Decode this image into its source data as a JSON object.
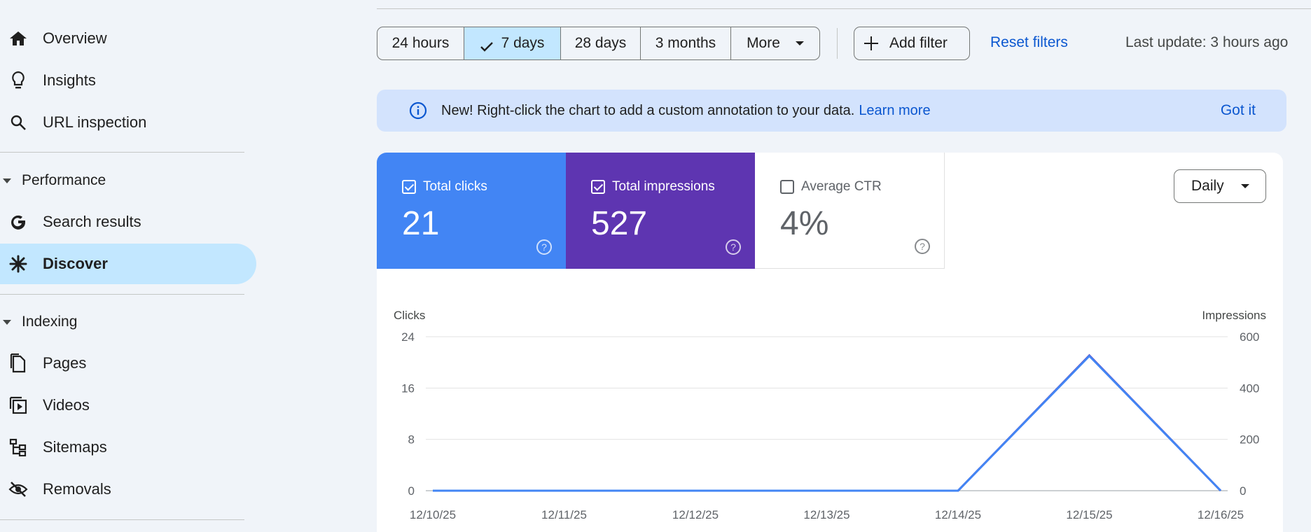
{
  "sidebar": {
    "items": [
      {
        "label": "Overview",
        "icon": "home-icon"
      },
      {
        "label": "Insights",
        "icon": "lightbulb-icon"
      },
      {
        "label": "URL inspection",
        "icon": "search-icon"
      }
    ],
    "performance": {
      "label": "Performance",
      "items": [
        {
          "label": "Search results",
          "icon": "google-g-icon"
        },
        {
          "label": "Discover",
          "icon": "asterisk-icon",
          "active": true
        }
      ]
    },
    "indexing": {
      "label": "Indexing",
      "items": [
        {
          "label": "Pages",
          "icon": "pages-icon"
        },
        {
          "label": "Videos",
          "icon": "video-icon"
        },
        {
          "label": "Sitemaps",
          "icon": "sitemap-icon"
        },
        {
          "label": "Removals",
          "icon": "eye-off-icon"
        }
      ]
    }
  },
  "filters": {
    "ranges": [
      "24 hours",
      "7 days",
      "28 days",
      "3 months"
    ],
    "selected": "7 days",
    "more": "More",
    "add_filter": "Add filter",
    "reset": "Reset filters",
    "last_update": "Last update: 3 hours ago"
  },
  "banner": {
    "message": "New! Right-click the chart to add a custom annotation to your data.",
    "learn_more": "Learn more",
    "dismiss": "Got it"
  },
  "metrics": {
    "clicks": {
      "label": "Total clicks",
      "value": "21",
      "checked": true
    },
    "impressions": {
      "label": "Total impressions",
      "value": "527",
      "checked": true
    },
    "ctr": {
      "label": "Average CTR",
      "value": "4%",
      "checked": false
    }
  },
  "granularity": "Daily",
  "colors": {
    "clicks": "#4285f4",
    "impressions": "#5e35b1",
    "accent": "#0b57d0",
    "active_nav": "#c2e7ff"
  },
  "chart_data": {
    "type": "line",
    "x": [
      "12/10/25",
      "12/11/25",
      "12/12/25",
      "12/13/25",
      "12/14/25",
      "12/15/25",
      "12/16/25"
    ],
    "series": [
      {
        "values": [
          0,
          0,
          0,
          0,
          0,
          21,
          0
        ],
        "axis": "left"
      },
      {
        "values": [
          0,
          0,
          0,
          0,
          0,
          527,
          0
        ],
        "axis": "right"
      }
    ],
    "ylabel_left": "Clicks",
    "ylabel_right": "Impressions",
    "yticks_left": [
      0,
      8,
      16,
      24
    ],
    "yticks_right": [
      0,
      200,
      400,
      600
    ],
    "ylim_left": [
      0,
      24
    ],
    "ylim_right": [
      0,
      600
    ],
    "grid": true
  }
}
